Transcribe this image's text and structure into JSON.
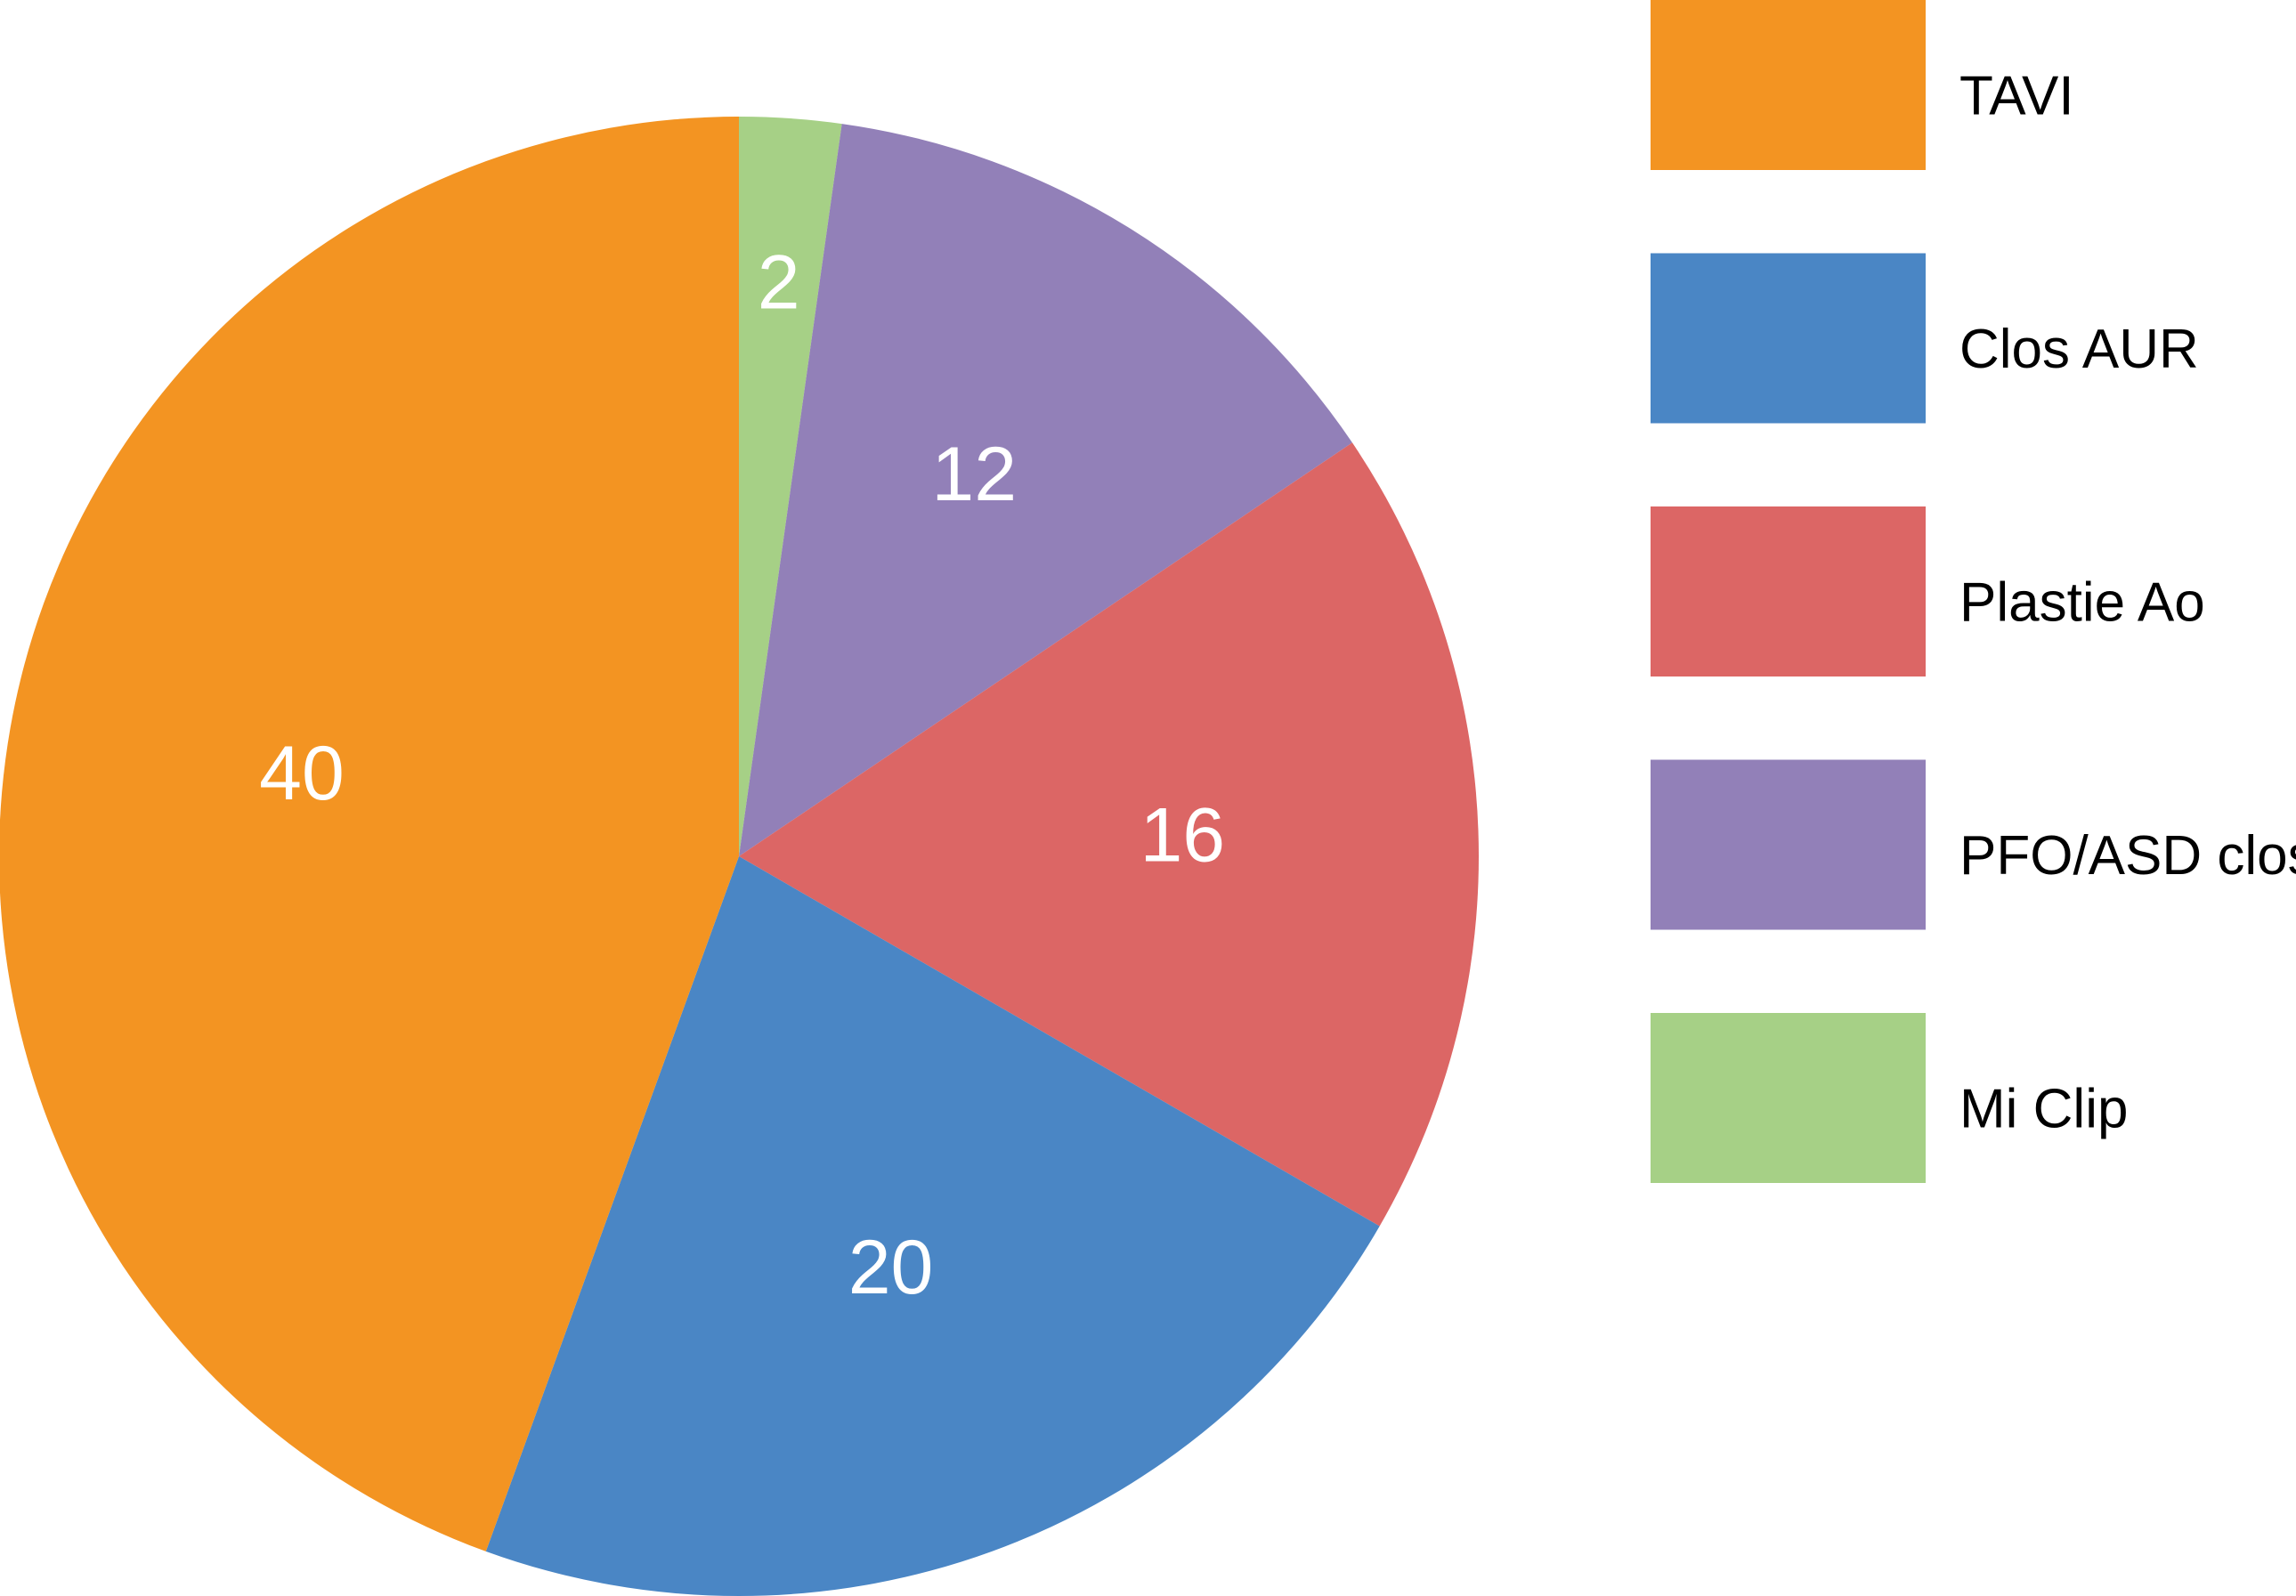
{
  "chart_data": {
    "type": "pie",
    "categories": [
      "TAVI",
      "Clos AUR",
      "Plastie Ao",
      "PFO/ASD clos",
      "Mi Clip"
    ],
    "values": [
      40,
      20,
      16,
      12,
      2
    ],
    "colors": [
      "#f39422",
      "#4a86c5",
      "#dc6665",
      "#9280b8",
      "#a6d086"
    ],
    "legend": "right"
  }
}
